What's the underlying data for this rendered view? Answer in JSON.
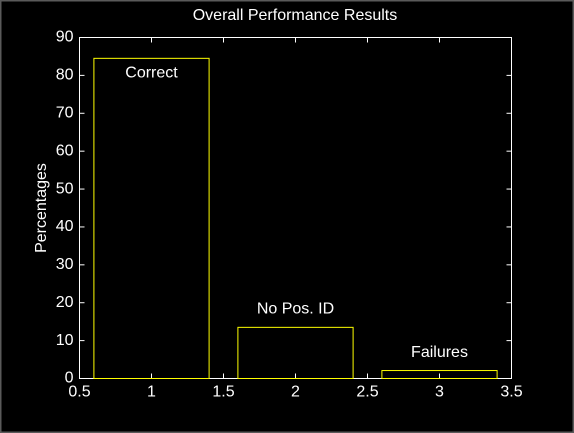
{
  "chart_data": {
    "type": "bar",
    "title": "Overall Performance Results",
    "ylabel": "Percentages",
    "categories": [
      "Correct",
      "No Pos. ID",
      "Failures"
    ],
    "x": [
      1,
      2,
      3
    ],
    "values": [
      84.5,
      13.5,
      2.1
    ],
    "color": "#ffff00",
    "xlim": [
      0.5,
      3.5
    ],
    "xticks": [
      0.5,
      1,
      1.5,
      2,
      2.5,
      3,
      3.5
    ],
    "ylim": [
      0,
      90
    ],
    "yticks": [
      0,
      10,
      20,
      30,
      40,
      50,
      60,
      70,
      80,
      90
    ]
  }
}
